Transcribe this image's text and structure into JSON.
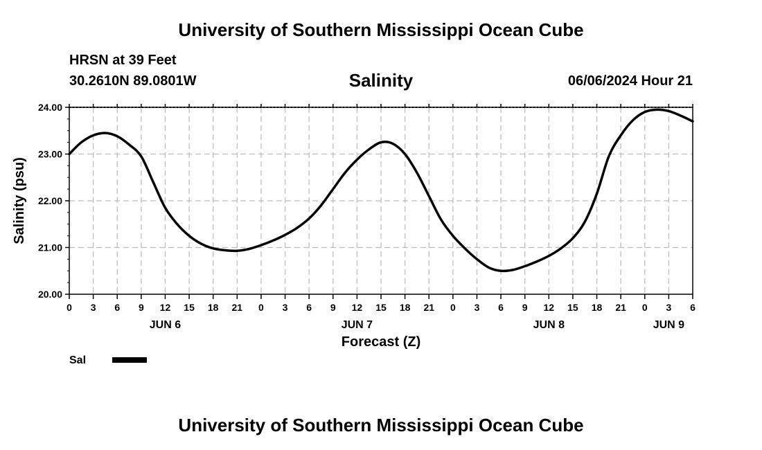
{
  "header": {
    "title": "University of Southern Mississippi Ocean Cube",
    "station": "HRSN at 39 Feet",
    "coords": "30.2610N  89.0801W",
    "chart_title": "Salinity",
    "timestamp": "06/06/2024 Hour 21"
  },
  "legend": {
    "label": "Sal",
    "color": "#000000"
  },
  "footer": {
    "title": "University of Southern Mississippi Ocean Cube"
  },
  "chart_data": {
    "type": "line",
    "title": "Salinity",
    "xlabel": "Forecast (Z)",
    "ylabel": "Salinity (psu)",
    "xlim": [
      0,
      78
    ],
    "ylim": [
      20,
      24
    ],
    "grid": true,
    "x_tick_step": 3,
    "x_tick_labels": [
      "0",
      "3",
      "6",
      "9",
      "12",
      "15",
      "18",
      "21",
      "0",
      "3",
      "6",
      "9",
      "12",
      "15",
      "18",
      "21",
      "0",
      "3",
      "6",
      "9",
      "12",
      "15",
      "18",
      "21",
      "0",
      "3",
      "6"
    ],
    "y_ticks": [
      20,
      21,
      22,
      23,
      24
    ],
    "y_tick_labels": [
      "20.00",
      "21.00",
      "22.00",
      "23.00",
      "24.00"
    ],
    "day_labels": [
      {
        "x": 12,
        "label": "JUN 6"
      },
      {
        "x": 36,
        "label": "JUN 7"
      },
      {
        "x": 60,
        "label": "JUN 8"
      },
      {
        "x": 75,
        "label": "JUN 9"
      }
    ],
    "series": [
      {
        "name": "Sal",
        "color": "#000000",
        "x": [
          0,
          1.5,
          3,
          4.5,
          6,
          7.5,
          9,
          10.5,
          12,
          13.5,
          15,
          16.5,
          18,
          19.5,
          21,
          22.5,
          24,
          25.5,
          27,
          28.5,
          30,
          31.5,
          33,
          34.5,
          36,
          37.5,
          39,
          40.5,
          42,
          43.5,
          45,
          46.5,
          48,
          49.5,
          51,
          52.5,
          54,
          55.5,
          57,
          58.5,
          60,
          61.5,
          63,
          64.5,
          66,
          67.5,
          69,
          70.5,
          72,
          73.5,
          75,
          76.5,
          78
        ],
        "values": [
          23.0,
          23.25,
          23.4,
          23.45,
          23.38,
          23.2,
          22.95,
          22.4,
          21.85,
          21.5,
          21.25,
          21.08,
          20.98,
          20.94,
          20.93,
          20.97,
          21.05,
          21.15,
          21.27,
          21.42,
          21.62,
          21.9,
          22.25,
          22.6,
          22.88,
          23.1,
          23.25,
          23.22,
          23.0,
          22.6,
          22.1,
          21.6,
          21.25,
          20.98,
          20.75,
          20.57,
          20.5,
          20.52,
          20.6,
          20.7,
          20.82,
          20.98,
          21.2,
          21.55,
          22.15,
          22.95,
          23.4,
          23.72,
          23.9,
          23.95,
          23.92,
          23.82,
          23.7
        ]
      }
    ]
  }
}
